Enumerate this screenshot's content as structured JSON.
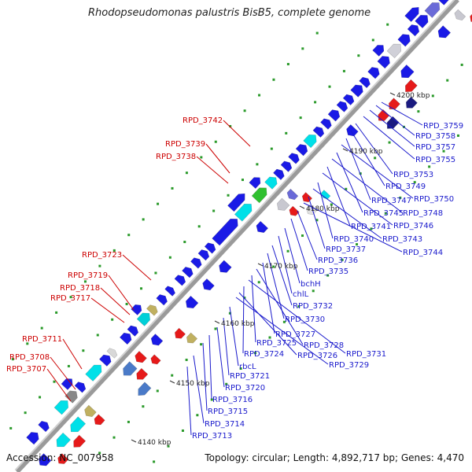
{
  "title": "Rhodopseudomonas palustris BisB5, complete genome",
  "accession": "Accession: NC_007958",
  "topology": "Topology: circular; Length: 4,892,717 bp; Genes: 4,470",
  "colors": {
    "backbone": "#9a9a9a",
    "forward_gene": "#1a1ae6",
    "reverse_gene": "#e61a1a",
    "left_label": "#cc0000",
    "right_label": "#1a1acc",
    "tick": "#2a9a2a"
  },
  "kbp_ticks": [
    "4140 kbp",
    "4150 kbp",
    "4160 kbp",
    "4170 kbp",
    "4180 kbp",
    "4190 kbp",
    "4200 kbp"
  ],
  "left_labels": [
    "RPD_3742",
    "RPD_3739",
    "RPD_3738",
    "RPD_3723",
    "RPD_3719",
    "RPD_3718",
    "RPD_3717",
    "RPD_3711",
    "RPD_3708",
    "RPD_3707"
  ],
  "right_labels": [
    "RPD_3759",
    "RPD_3758",
    "RPD_3757",
    "RPD_3755",
    "RPD_3753",
    "RPD_3749",
    "RPD_3747",
    "RPD_3750",
    "RPD_3745",
    "RPD_3748",
    "RPD_3741",
    "RPD_3746",
    "RPD_3740",
    "RPD_3743",
    "RPD_3737",
    "RPD_3744",
    "RPD_3736",
    "RPD_3735",
    "bchH",
    "chlL",
    "RPD_3732",
    "RPD_3730",
    "RPD_3727",
    "RPD_3728",
    "RPD_3725",
    "RPD_3731",
    "RPD_3724",
    "RPD_3726",
    "RPD_3729",
    "rbcL",
    "RPD_3721",
    "RPD_3720",
    "RPD_3716",
    "RPD_3715",
    "RPD_3714",
    "RPD_3713"
  ]
}
